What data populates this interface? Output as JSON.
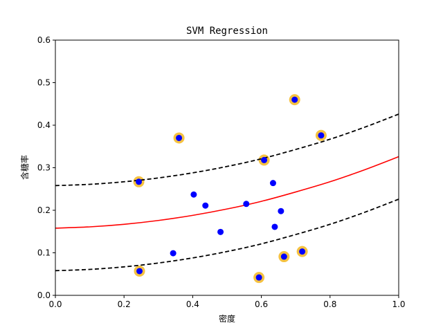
{
  "chart_data": {
    "type": "scatter",
    "title": "SVM Regression",
    "xlabel": "密度",
    "ylabel": "含糖率",
    "xlim": [
      0,
      1
    ],
    "ylim": [
      0,
      0.6
    ],
    "xticks": [
      "0.0",
      "0.2",
      "0.4",
      "0.6",
      "0.8",
      "1.0"
    ],
    "yticks": [
      "0.0",
      "0.1",
      "0.2",
      "0.3",
      "0.4",
      "0.5",
      "0.6"
    ],
    "grid": false,
    "colors": {
      "points": "#0000ff",
      "support_vectors": "#f5c242",
      "regression_line": "#ff0000",
      "margin_lines": "#000000"
    },
    "points": [
      {
        "x": 0.697,
        "y": 0.46,
        "support_vector": true
      },
      {
        "x": 0.774,
        "y": 0.376,
        "support_vector": true
      },
      {
        "x": 0.634,
        "y": 0.264,
        "support_vector": false
      },
      {
        "x": 0.608,
        "y": 0.318,
        "support_vector": true
      },
      {
        "x": 0.556,
        "y": 0.215,
        "support_vector": false
      },
      {
        "x": 0.403,
        "y": 0.237,
        "support_vector": false
      },
      {
        "x": 0.481,
        "y": 0.149,
        "support_vector": false
      },
      {
        "x": 0.437,
        "y": 0.211,
        "support_vector": false
      },
      {
        "x": 0.666,
        "y": 0.091,
        "support_vector": true
      },
      {
        "x": 0.243,
        "y": 0.267,
        "support_vector": true
      },
      {
        "x": 0.245,
        "y": 0.057,
        "support_vector": true
      },
      {
        "x": 0.343,
        "y": 0.099,
        "support_vector": false
      },
      {
        "x": 0.639,
        "y": 0.161,
        "support_vector": false
      },
      {
        "x": 0.657,
        "y": 0.198,
        "support_vector": false
      },
      {
        "x": 0.36,
        "y": 0.37,
        "support_vector": true
      },
      {
        "x": 0.593,
        "y": 0.042,
        "support_vector": true
      },
      {
        "x": 0.719,
        "y": 0.103,
        "support_vector": true
      }
    ],
    "regression_curve": {
      "x": [
        0.0,
        0.1,
        0.2,
        0.3,
        0.4,
        0.5,
        0.6,
        0.7,
        0.8,
        0.9,
        1.0
      ],
      "y": [
        0.158,
        0.161,
        0.167,
        0.176,
        0.188,
        0.203,
        0.221,
        0.243,
        0.267,
        0.295,
        0.326
      ]
    },
    "epsilon": 0.1
  }
}
